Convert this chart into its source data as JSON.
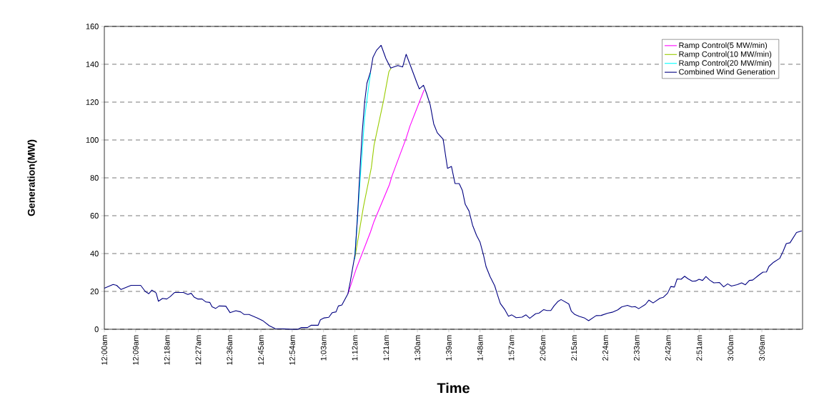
{
  "chart_data": {
    "type": "line",
    "xlabel": "Time",
    "ylabel": "Generation(MW)",
    "xlim": [
      0,
      3.345
    ],
    "ylim": [
      0,
      160
    ],
    "yticks": [
      0,
      20,
      40,
      60,
      80,
      100,
      120,
      140,
      160
    ],
    "xticks": [
      {
        "value": 0,
        "label": "12:00am"
      },
      {
        "value": 0.15,
        "label": "12:09am"
      },
      {
        "value": 0.3,
        "label": "12:18am"
      },
      {
        "value": 0.45,
        "label": "12:27am"
      },
      {
        "value": 0.6,
        "label": "12:36am"
      },
      {
        "value": 0.75,
        "label": "12:45am"
      },
      {
        "value": 0.9,
        "label": "12:54am"
      },
      {
        "value": 1.05,
        "label": "1:03am"
      },
      {
        "value": 1.2,
        "label": "1:12am"
      },
      {
        "value": 1.35,
        "label": "1:21am"
      },
      {
        "value": 1.5,
        "label": "1:30am"
      },
      {
        "value": 1.65,
        "label": "1:39am"
      },
      {
        "value": 1.8,
        "label": "1:48am"
      },
      {
        "value": 1.95,
        "label": "1:57am"
      },
      {
        "value": 2.1,
        "label": "2:06am"
      },
      {
        "value": 2.25,
        "label": "2:15am"
      },
      {
        "value": 2.4,
        "label": "2:24am"
      },
      {
        "value": 2.55,
        "label": "2:33am"
      },
      {
        "value": 2.7,
        "label": "2:42am"
      },
      {
        "value": 2.85,
        "label": "2:51am"
      },
      {
        "value": 3.0,
        "label": "3:00am"
      },
      {
        "value": 3.15,
        "label": "3:09am"
      }
    ],
    "grid": "y",
    "legend": "top right",
    "marker": "none",
    "line_style": "solid",
    "series": [
      {
        "name": "Ramp Control(5 MW/min)",
        "color": "#ff00ff",
        "x": [
          1.167,
          1.207,
          1.275,
          1.292,
          1.366,
          1.378,
          1.446,
          1.464,
          1.532
        ],
        "values": [
          18.8,
          32,
          51.4,
          57,
          76.5,
          81,
          101,
          107.3,
          126.5
        ]
      },
      {
        "name": "Ramp Control(10 MW/min)",
        "color": "#99cc00",
        "x": [
          1.199,
          1.241,
          1.279,
          1.292,
          1.338,
          1.363,
          1.374
        ],
        "values": [
          37,
          64.6,
          85.3,
          97.2,
          121,
          136,
          138
        ]
      },
      {
        "name": "Ramp Control(20 MW/min)",
        "color": "#00ffff",
        "x": [
          1.199,
          1.224,
          1.247,
          1.275
        ],
        "values": [
          37,
          77,
          112,
          135.5
        ]
      },
      {
        "name": "Combined Wind Generation",
        "color": "#000080",
        "x": [
          0,
          0.042,
          0.059,
          0.08,
          0.128,
          0.151,
          0.174,
          0.196,
          0.213,
          0.228,
          0.248,
          0.259,
          0.279,
          0.299,
          0.316,
          0.336,
          0.379,
          0.4,
          0.416,
          0.43,
          0.447,
          0.468,
          0.487,
          0.505,
          0.516,
          0.533,
          0.55,
          0.582,
          0.602,
          0.63,
          0.653,
          0.67,
          0.693,
          0.733,
          0.761,
          0.79,
          0.818,
          0.858,
          0.893,
          0.927,
          0.944,
          0.973,
          0.99,
          1.024,
          1.035,
          1.053,
          1.075,
          1.092,
          1.11,
          1.121,
          1.138,
          1.155,
          1.167,
          1.178,
          1.189,
          1.201,
          1.212,
          1.224,
          1.235,
          1.247,
          1.258,
          1.275,
          1.287,
          1.304,
          1.326,
          1.349,
          1.372,
          1.406,
          1.429,
          1.446,
          1.475,
          1.498,
          1.509,
          1.529,
          1.543,
          1.561,
          1.578,
          1.595,
          1.623,
          1.644,
          1.663,
          1.68,
          1.7,
          1.715,
          1.729,
          1.747,
          1.764,
          1.783,
          1.8,
          1.817,
          1.829,
          1.848,
          1.87,
          1.885,
          1.897,
          1.919,
          1.936,
          1.952,
          1.973,
          2.001,
          2.02,
          2.038,
          2.066,
          2.083,
          2.105,
          2.12,
          2.139,
          2.154,
          2.172,
          2.188,
          2.225,
          2.237,
          2.254,
          2.276,
          2.301,
          2.32,
          2.356,
          2.38,
          2.411,
          2.433,
          2.46,
          2.478,
          2.506,
          2.527,
          2.543,
          2.56,
          2.592,
          2.609,
          2.629,
          2.662,
          2.678,
          2.698,
          2.714,
          2.731,
          2.744,
          2.763,
          2.78,
          2.796,
          2.817,
          2.833,
          2.849,
          2.866,
          2.882,
          2.9,
          2.92,
          2.947,
          2.967,
          2.986,
          3.004,
          3.032,
          3.053,
          3.071,
          3.09,
          3.106,
          3.133,
          3.155,
          3.172,
          3.184,
          3.206,
          3.236,
          3.252,
          3.267,
          3.285,
          3.316,
          3.341
        ],
        "values": [
          21.7,
          23.7,
          23.2,
          21,
          23.2,
          23.2,
          23.2,
          20,
          18.8,
          20.7,
          19.2,
          14.8,
          16.3,
          16,
          17.3,
          19.4,
          19.4,
          18.4,
          19,
          17,
          16,
          16,
          14.4,
          14.2,
          11.9,
          11,
          12.3,
          12.2,
          8.8,
          9.8,
          9.2,
          7.8,
          7.8,
          5.9,
          4.4,
          1.9,
          0.4,
          0.3,
          0,
          0,
          0.9,
          0.9,
          2.1,
          2.1,
          5,
          6,
          6.3,
          8.8,
          9.2,
          12.3,
          12.8,
          16.3,
          18.8,
          25,
          32,
          39.5,
          58,
          83,
          103.5,
          120,
          130,
          136,
          143.7,
          147.4,
          150,
          143,
          138,
          139.3,
          138.6,
          145.3,
          136.8,
          130,
          127,
          128.9,
          124.8,
          118.6,
          108.5,
          103.8,
          100.4,
          85,
          86,
          77,
          77,
          73.4,
          66,
          62.5,
          55,
          49.6,
          46,
          38.9,
          33,
          27.8,
          23,
          17.7,
          13.6,
          10.3,
          6.9,
          7.6,
          6.1,
          6.4,
          7.6,
          5.8,
          8.2,
          8.6,
          10.4,
          9.9,
          9.9,
          12.3,
          14.6,
          15.7,
          13.4,
          9.6,
          7.8,
          6.8,
          5.9,
          4.5,
          7.2,
          7.3,
          8.5,
          9,
          10.3,
          11.8,
          12.6,
          11.8,
          12,
          10.9,
          13.1,
          15.4,
          13.9,
          16.4,
          16.9,
          19,
          22.6,
          22.3,
          26.6,
          26.4,
          28,
          26.7,
          25.4,
          25.5,
          26.4,
          25.8,
          27.9,
          26,
          24.5,
          24.7,
          22.4,
          24,
          22.8,
          23.6,
          24.5,
          23.5,
          25.8,
          26,
          28.4,
          30.2,
          30.3,
          33.2,
          35.4,
          37.5,
          41.2,
          45.3,
          45.7,
          51.1,
          52
        ]
      }
    ]
  }
}
